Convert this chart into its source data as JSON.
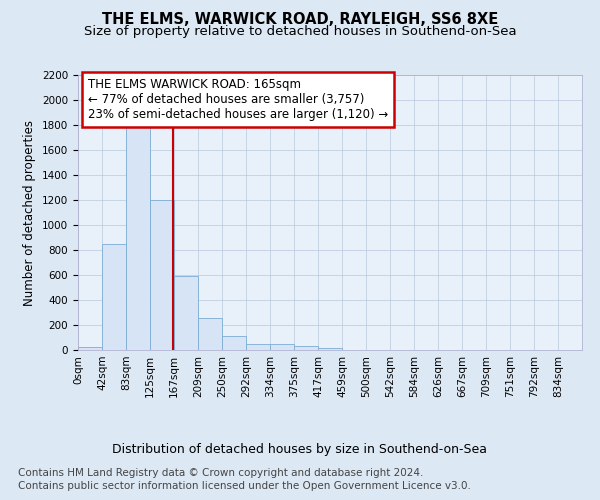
{
  "title": "THE ELMS, WARWICK ROAD, RAYLEIGH, SS6 8XE",
  "subtitle": "Size of property relative to detached houses in Southend-on-Sea",
  "xlabel": "Distribution of detached houses by size in Southend-on-Sea",
  "ylabel": "Number of detached properties",
  "bin_labels": [
    "0sqm",
    "42sqm",
    "83sqm",
    "125sqm",
    "167sqm",
    "209sqm",
    "250sqm",
    "292sqm",
    "334sqm",
    "375sqm",
    "417sqm",
    "459sqm",
    "500sqm",
    "542sqm",
    "584sqm",
    "626sqm",
    "667sqm",
    "709sqm",
    "751sqm",
    "792sqm",
    "834sqm"
  ],
  "bar_heights": [
    25,
    845,
    1790,
    1200,
    590,
    255,
    115,
    48,
    48,
    32,
    20,
    0,
    0,
    0,
    0,
    0,
    0,
    0,
    0,
    0,
    0
  ],
  "bar_color": "#d6e4f5",
  "bar_edge_color": "#7badd4",
  "annotation_text": "THE ELMS WARWICK ROAD: 165sqm\n← 77% of detached houses are smaller (3,757)\n23% of semi-detached houses are larger (1,120) →",
  "annotation_box_color": "#ffffff",
  "annotation_box_edge_color": "#cc0000",
  "vline_color": "#cc0000",
  "ylim": [
    0,
    2200
  ],
  "yticks": [
    0,
    200,
    400,
    600,
    800,
    1000,
    1200,
    1400,
    1600,
    1800,
    2000,
    2200
  ],
  "background_color": "#dde8f5",
  "plot_bg_color": "#e8f0fa",
  "footer_line1": "Contains HM Land Registry data © Crown copyright and database right 2024.",
  "footer_line2": "Contains public sector information licensed under the Open Government Licence v3.0.",
  "title_fontsize": 10.5,
  "subtitle_fontsize": 9.5,
  "xlabel_fontsize": 9,
  "ylabel_fontsize": 8.5,
  "tick_fontsize": 7.5,
  "annotation_fontsize": 8.5,
  "footer_fontsize": 7.5
}
